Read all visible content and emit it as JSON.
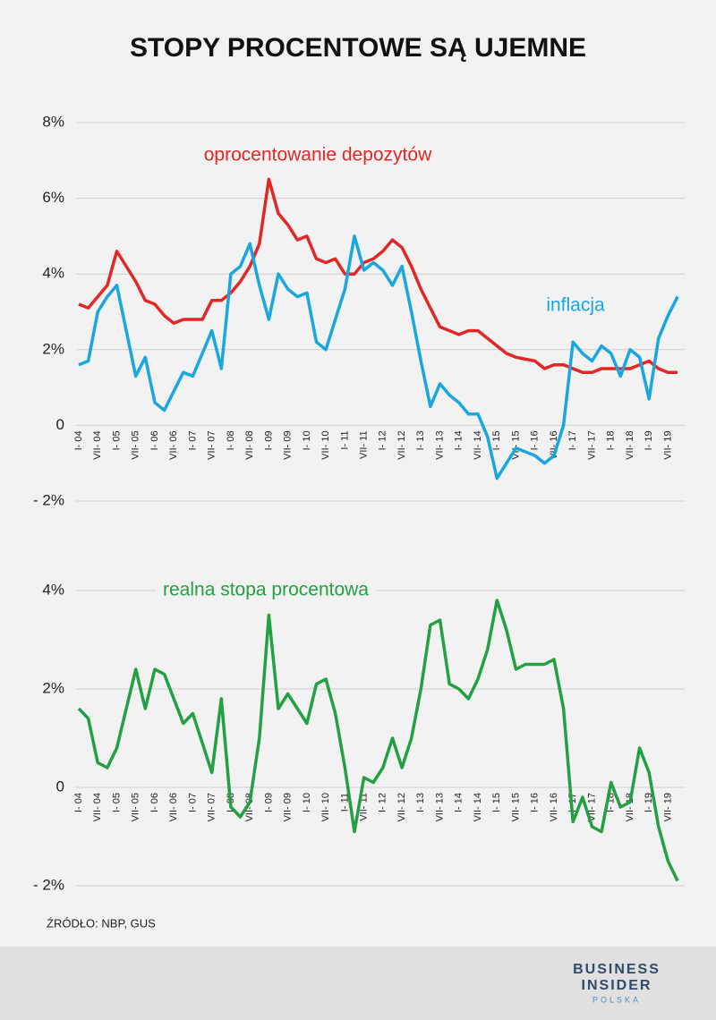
{
  "title": "STOPY PROCENTOWE SĄ UJEMNE",
  "source": "ŹRÓDŁO: NBP, GUS",
  "logo": {
    "line1": "BUSINESS",
    "line2": "INSIDER",
    "line3": "POLSKA"
  },
  "chart_data": [
    {
      "type": "line",
      "categories": [
        "I- 04",
        null,
        "VII- 04",
        null,
        "I- 05",
        null,
        "VII- 05",
        null,
        "I- 06",
        null,
        "VII- 06",
        null,
        "I- 07",
        null,
        "VII- 07",
        null,
        "I- 08",
        null,
        "VII- 08",
        null,
        "I- 09",
        null,
        "VII- 09",
        null,
        "I- 10",
        null,
        "VII- 10",
        null,
        "I- 11",
        null,
        "VII- 11",
        null,
        "I- 12",
        null,
        "VII- 12",
        null,
        "I- 13",
        null,
        "VII- 13",
        null,
        "I- 14",
        null,
        "VII- 14",
        null,
        "I- 15",
        null,
        "VII- 15",
        null,
        "I- 16",
        null,
        "VII- 16",
        null,
        "I- 17",
        null,
        "VII- 17",
        null,
        "I- 18",
        null,
        "VII- 18",
        null,
        "I- 19",
        null,
        "VII- 19",
        null
      ],
      "series": [
        {
          "name": "oprocentowanie depozytów",
          "color": "#e02826",
          "values": [
            3.2,
            3.1,
            3.4,
            3.7,
            4.6,
            4.2,
            3.8,
            3.3,
            3.2,
            2.9,
            2.7,
            2.8,
            2.8,
            2.8,
            3.3,
            3.3,
            3.5,
            3.8,
            4.2,
            4.8,
            6.5,
            5.6,
            5.3,
            4.9,
            5.0,
            4.4,
            4.3,
            4.4,
            4.0,
            4.0,
            4.3,
            4.4,
            4.6,
            4.9,
            4.7,
            4.2,
            3.6,
            3.1,
            2.6,
            2.5,
            2.4,
            2.5,
            2.5,
            2.3,
            2.1,
            1.9,
            1.8,
            1.75,
            1.7,
            1.5,
            1.6,
            1.6,
            1.5,
            1.4,
            1.4,
            1.5,
            1.5,
            1.5,
            1.5,
            1.6,
            1.7,
            1.5,
            1.4,
            1.4
          ]
        },
        {
          "name": "inflacja",
          "color": "#1aa6df",
          "values": [
            1.6,
            1.7,
            3.0,
            3.4,
            3.7,
            2.5,
            1.3,
            1.8,
            0.6,
            0.4,
            0.9,
            1.4,
            1.3,
            1.9,
            2.5,
            1.5,
            4.0,
            4.2,
            4.8,
            3.7,
            2.8,
            4.0,
            3.6,
            3.4,
            3.5,
            2.2,
            2.0,
            2.8,
            3.6,
            5.0,
            4.1,
            4.3,
            4.1,
            3.7,
            4.2,
            3.0,
            1.7,
            0.5,
            1.1,
            0.8,
            0.6,
            0.3,
            0.3,
            -0.3,
            -1.4,
            -1.0,
            -0.6,
            -0.7,
            -0.8,
            -1.0,
            -0.8,
            0.0,
            2.2,
            1.9,
            1.7,
            2.1,
            1.9,
            1.3,
            2.0,
            1.8,
            0.7,
            2.3,
            2.9,
            3.4
          ]
        }
      ],
      "ylim": [
        -2,
        8
      ],
      "yticks": [
        {
          "value": -2,
          "label": "- 2%"
        },
        0,
        {
          "value": 2,
          "label": "2%"
        },
        {
          "value": 4,
          "label": "4%"
        },
        {
          "value": 6,
          "label": "6%"
        },
        {
          "value": 8,
          "label": "8%"
        }
      ],
      "grid": true
    },
    {
      "type": "line",
      "categories": [
        "I- 04",
        null,
        "VII- 04",
        null,
        "I- 05",
        null,
        "VII- 05",
        null,
        "I- 06",
        null,
        "VII- 06",
        null,
        "I- 07",
        null,
        "VII- 07",
        null,
        "I- 08",
        null,
        "VII- 08",
        null,
        "I- 09",
        null,
        "VII- 09",
        null,
        "I- 10",
        null,
        "VII- 10",
        null,
        "I- 11",
        null,
        "VII- 11",
        null,
        "I- 12",
        null,
        "VII- 12",
        null,
        "I- 13",
        null,
        "VII- 13",
        null,
        "I- 14",
        null,
        "VII- 14",
        null,
        "I- 15",
        null,
        "VII- 15",
        null,
        "I- 16",
        null,
        "VII- 16",
        null,
        "I- 17",
        null,
        "VII- 17",
        null,
        "I- 18",
        null,
        "VII- 18",
        null,
        "I- 19",
        null,
        "VII- 19",
        null
      ],
      "series": [
        {
          "name": "realna stopa procentowa",
          "color": "#22a043",
          "values": [
            1.6,
            1.4,
            0.5,
            0.4,
            0.8,
            1.6,
            2.4,
            1.6,
            2.4,
            2.3,
            1.8,
            1.3,
            1.5,
            0.9,
            0.3,
            1.8,
            -0.4,
            -0.6,
            -0.3,
            1.0,
            3.5,
            1.6,
            1.9,
            1.6,
            1.3,
            2.1,
            2.2,
            1.5,
            0.4,
            -0.9,
            0.2,
            0.1,
            0.4,
            1.0,
            0.4,
            1.0,
            2.0,
            3.3,
            3.4,
            2.1,
            2.0,
            1.8,
            2.2,
            2.8,
            3.8,
            3.2,
            2.4,
            2.5,
            2.5,
            2.5,
            2.6,
            1.6,
            -0.7,
            -0.2,
            -0.8,
            -0.9,
            0.1,
            -0.4,
            -0.3,
            0.8,
            0.3,
            -0.8,
            -1.5,
            -1.9
          ]
        }
      ],
      "ylim": [
        -2,
        4
      ],
      "yticks": [
        {
          "value": -2,
          "label": "- 2%"
        },
        0,
        {
          "value": 2,
          "label": "2%"
        },
        {
          "value": 4,
          "label": "4%"
        }
      ],
      "grid": true
    }
  ]
}
